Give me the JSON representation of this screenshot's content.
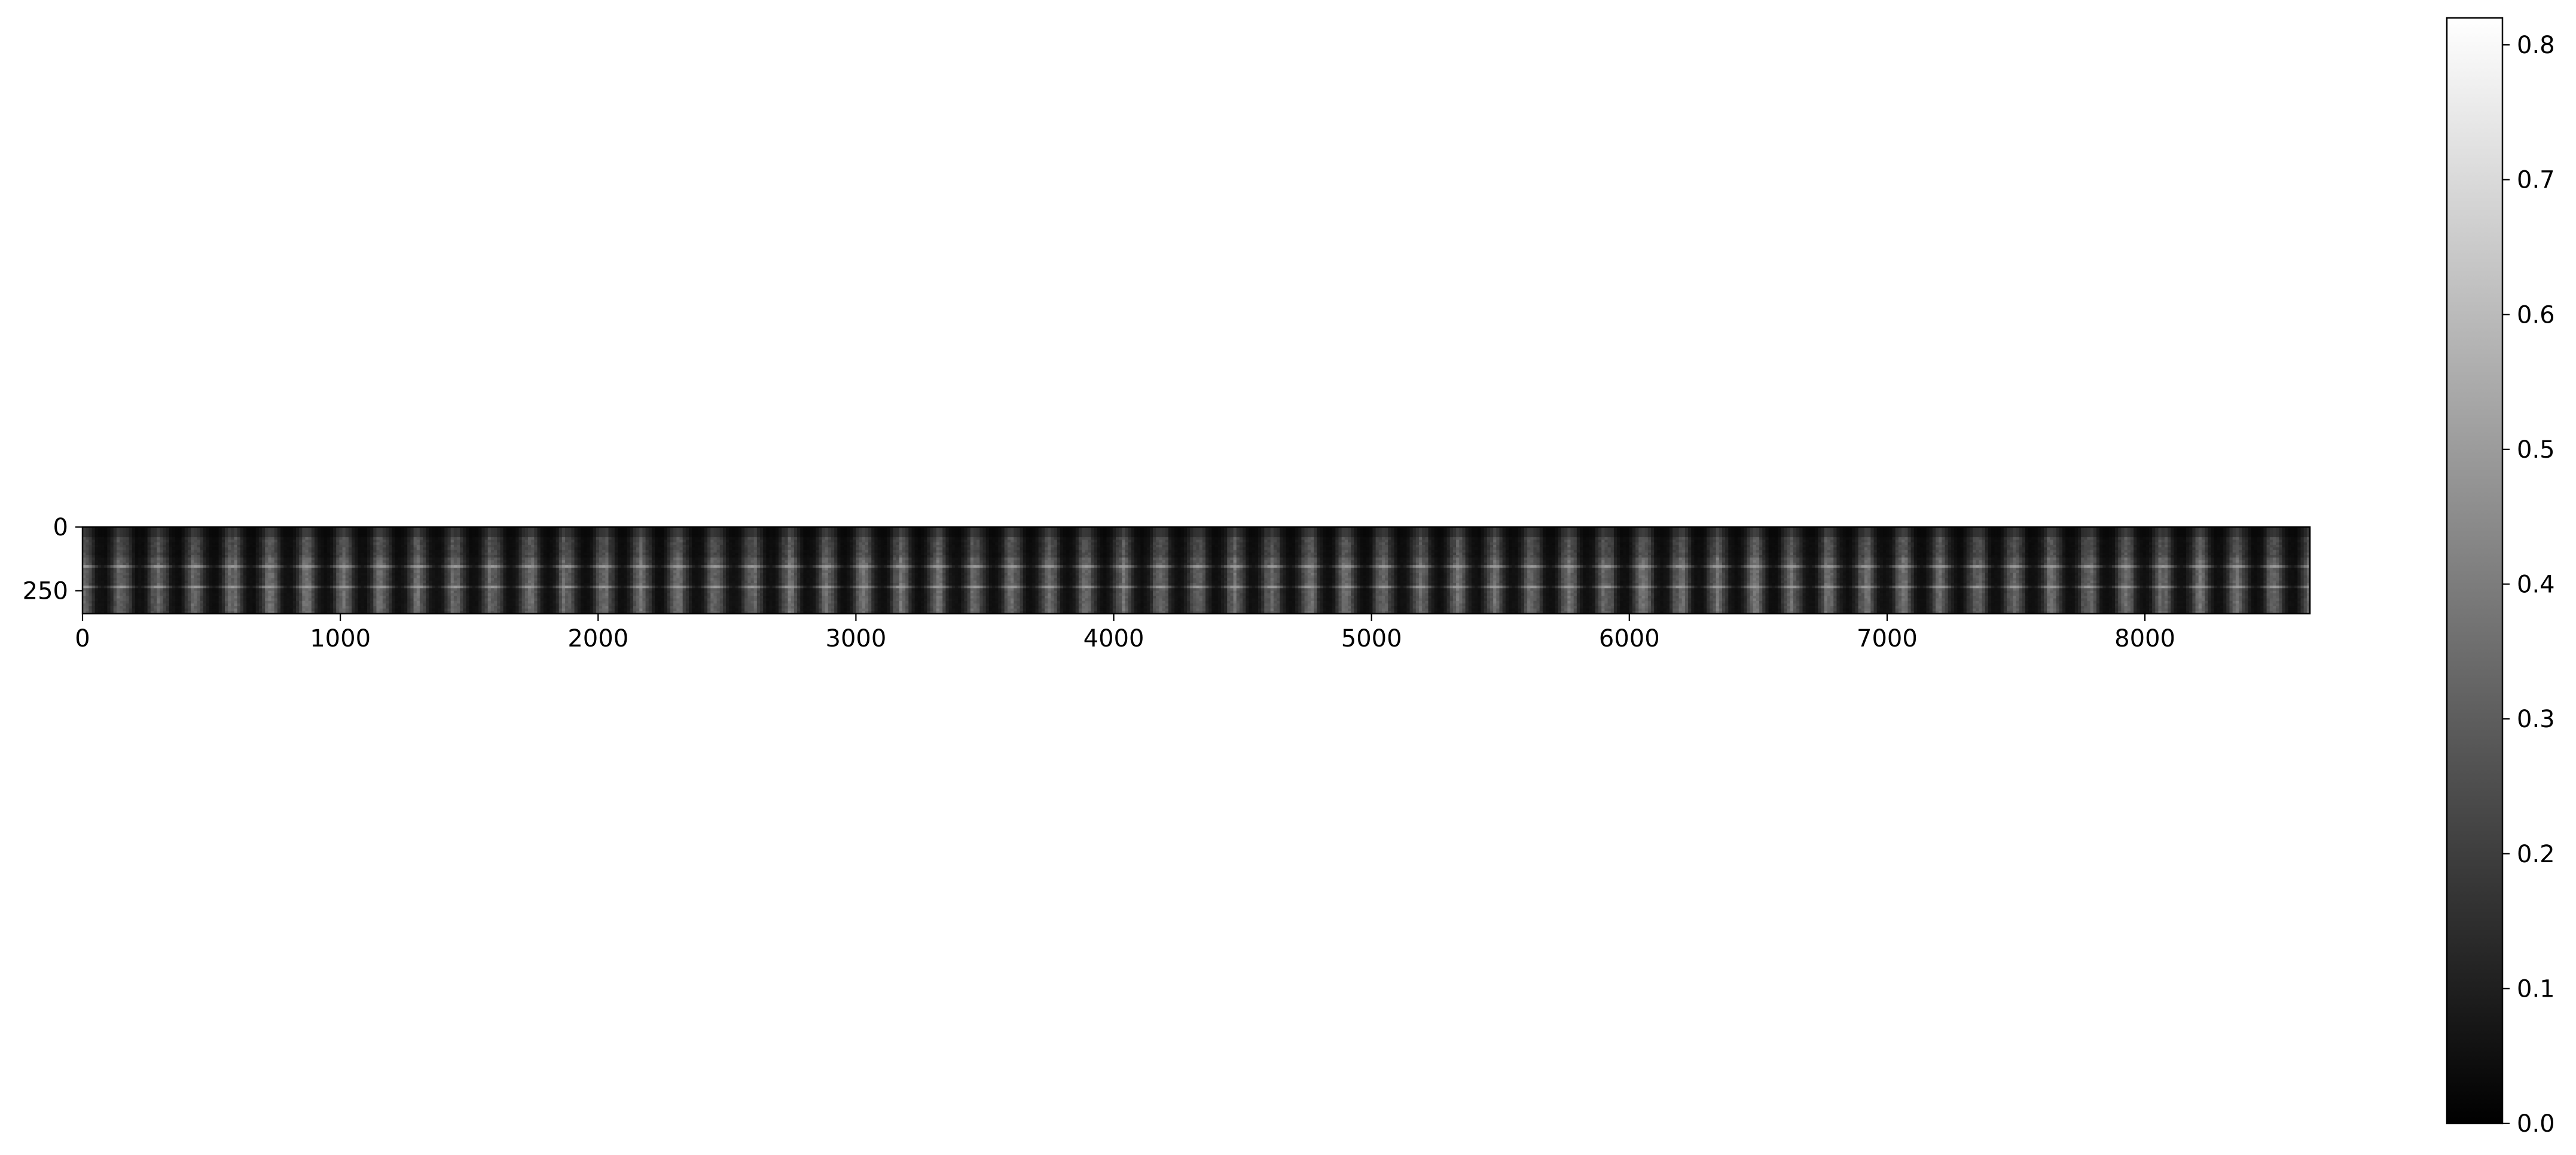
{
  "chart_data": {
    "type": "heatmap",
    "title": "",
    "xlabel": "",
    "ylabel": "",
    "colormap": "gray",
    "image_extent": {
      "x": [
        0,
        8640
      ],
      "y": [
        0,
        340
      ]
    },
    "x_ticks": [
      0,
      1000,
      2000,
      3000,
      4000,
      5000,
      6000,
      7000,
      8000
    ],
    "y_ticks": [
      0,
      250
    ],
    "x_tick_labels": [
      "0",
      "1000",
      "2000",
      "3000",
      "4000",
      "5000",
      "6000",
      "7000",
      "8000"
    ],
    "y_tick_labels": [
      "0",
      "250"
    ],
    "colorbar": {
      "range": [
        0.0,
        0.82
      ],
      "ticks": [
        0.0,
        0.1,
        0.2,
        0.3,
        0.4,
        0.5,
        0.6,
        0.7,
        0.8
      ],
      "tick_labels": [
        "0.0",
        "0.1",
        "0.2",
        "0.3",
        "0.4",
        "0.5",
        "0.6",
        "0.7",
        "0.8"
      ]
    },
    "pattern": {
      "description_values": "periodic vertical bands; background intensity approx 0.05-0.15; band peaks approx 0.3-0.4; brightest horizontal streaks near rows 150 and 230",
      "band_period_x": 144,
      "band_min": 0.05,
      "band_max": 0.34,
      "bright_rows": [
        150,
        230
      ],
      "bright_row_value": 0.42
    }
  }
}
